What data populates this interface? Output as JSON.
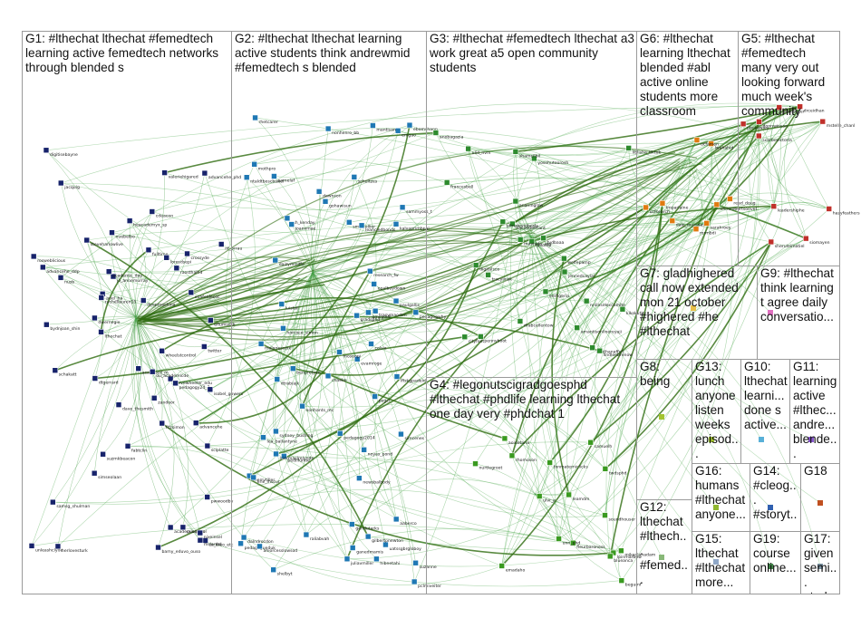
{
  "groups": [
    {
      "id": "G1",
      "label": "G1: #lthechat lthechat #femedtech learning active femedtech networks through blended s"
    },
    {
      "id": "G2",
      "label": "G2: #lthechat lthechat learning active students think andrewmid #femedtech s blended"
    },
    {
      "id": "G3",
      "label": "G3: #lthechat #femedtech lthechat a3 work great a5 open community students"
    },
    {
      "id": "G4",
      "label": "G4: #legonutscigradgoesphd #lthechat #phdlife learning lthechat one day very #phdchat 1"
    },
    {
      "id": "G5",
      "label": "G5: #lthechat #femedtech many very out looking forward much week's community"
    },
    {
      "id": "G6",
      "label": "G6: #lthechat learning lthechat blended #abl active online students more classroom"
    },
    {
      "id": "G7",
      "label": "G7: gladhighered call now extended mon 21 october #highered #he #lthechat"
    },
    {
      "id": "G8",
      "label": "G8: being"
    },
    {
      "id": "G9",
      "label": "G9: #lthechat think learning t agree daily conversatio..."
    },
    {
      "id": "G10",
      "label": "G10: lthechat learni... done s active..."
    },
    {
      "id": "G11",
      "label": "G11: learning active #lthec... andre... blende..."
    },
    {
      "id": "G12",
      "label": "G12: lthechat #lthech... #femed..."
    },
    {
      "id": "G13",
      "label": "G13: lunch anyone listen weeks episod..."
    },
    {
      "id": "G14",
      "label": "G14: #cleog... #storyt... #highe..."
    },
    {
      "id": "G15",
      "label": "G15: lthechat #lthechat more..."
    },
    {
      "id": "G16",
      "label": "G16: humans #lthechat anyone..."
    },
    {
      "id": "G17",
      "label": "G17: given semi... stud..."
    },
    {
      "id": "G18",
      "label": "G18"
    },
    {
      "id": "G19",
      "label": "G19: course online..."
    }
  ],
  "node_labels": {
    "G1": [
      "unleashclyde",
      "steveharlowlive",
      "stevewheeler_edu",
      "simseolaan",
      "pedagogy24_7",
      "fitzsimon",
      "crossyde",
      "suzmkbeacon",
      "valeriehigared",
      "wheelstcontrol",
      "pwwoodby",
      "schakatt",
      "sciplatte",
      "zandoor",
      "ca_bleo_etc",
      "ariel_ha",
      "eoafeldecoc",
      "nusb",
      "jo_annemurray",
      "isobel_gowers",
      "academicqu_lol",
      "advancehe_ddp",
      "acadebcd_m",
      "nuebelbo",
      "advancehe_phd",
      "rachellauren15",
      "bamy_eduvo_ouso",
      "heacademyx_sp",
      "academic_day",
      "lthechat",
      "dtgerrard",
      "fulltime",
      "twitter",
      "advancehe",
      "ou_academicde",
      "fabtclin",
      "eflumsdtb",
      "loresdsepi",
      "deepmachina",
      "dwernegio",
      "guardian",
      "samsg_shulman",
      "bydnjoan_shin",
      "jacquig",
      "nf_brrau",
      "cdeacon",
      "dave_thesmith",
      "herlovesturk",
      "nixeinsel",
      "mslenhd",
      "raosthalhd",
      "rosweblicious",
      "digitisebayne"
    ],
    "G2": [
      "smlacollier",
      "colsia",
      "leanciedbonds",
      "kalvaprimbpal",
      "raliabvah",
      "malanescore",
      "pedagogue4uk",
      "ganedmamis",
      "dalndrocdon",
      "shelbyt",
      "pedagogy2014",
      "ssh_kenday",
      "dtrabiajk",
      "merrytiller",
      "noyes_pond",
      "nonhenro_bb",
      "ahiorcesslowsod",
      "lea_ballantyne",
      "emgao",
      "aaberco",
      "suzanne",
      "tracymaoden",
      "pedllfunde",
      "paulgallis",
      "luisfall",
      "lfiskgpadeid",
      "nonhants_mc",
      "research_fw",
      "gmcgoldr",
      "daizyminiffe",
      "pclmiveiter",
      "gendutarks",
      "sammyoss_t",
      "schultzes",
      "chaeke",
      "hibnetahi",
      "gohawisun",
      "dawnson",
      "evamroge",
      "mosonpi",
      "epalbuydown",
      "mantisan",
      "benpretyen",
      "nickmaclrelynde",
      "joanvmae",
      "gradsphd",
      "eric_mscur",
      "uatssgbrgloboy",
      "simcenes",
      "ebomshapp",
      "pegcl",
      "gilbertpnewton",
      "ntaldtboscbanel",
      "mothpro",
      "rhetcarer",
      "juliavmiller",
      "pamelaf",
      "sydney_bushing",
      "horcoco_simon",
      "pedagogwhy",
      "newsbalbody"
    ],
    "G3": [
      "nacondetfrant",
      "francesbell",
      "anethanaffall",
      "cityfoot",
      "yosehutoorosh",
      "digitalsco",
      "ulid_nvm",
      "tracylinsk",
      "tvdbaaa",
      "liblisha_tiktok",
      "ananinglaw",
      "anobagazia",
      "shamcilbil",
      "pennyboot",
      "nnlinseleccomite",
      "drabcellentow",
      "kikokutic",
      "wolfepamp",
      "pfmaleyroberts",
      "fpercep",
      "emfigeria",
      "jennedcaylal",
      "amantisonlinereyaji",
      "lindleebrenow",
      "mavindn_aes"
    ],
    "G4": [
      "begumf",
      "aoidetaria",
      "emadaho",
      "fleurbaroness",
      "mikeolanadam",
      "nurtlegroot",
      "samuelh",
      "lpinmarbow",
      "unn_phd",
      "ulvr_p",
      "soundhouser",
      "twdsphd",
      "leamdm",
      "rhomoson",
      "tonmaterniclicks",
      "blueanca"
    ],
    "G5": [
      "leadershiphe",
      "mstelle_chanl",
      "sheruleimatiel",
      "pbckawley",
      "gdadbuter",
      "siomayen",
      "scarbovictoria",
      "hazyfeathers",
      "donnwinson",
      "drceidhan"
    ],
    "G6": [
      "chrisrobertsonvet",
      "lwahahid",
      "dale_mursday",
      "read_doug",
      "mrmbdi",
      "sarahroey",
      "ucfamen",
      "ucfsearch",
      "lmparlaine"
    ]
  },
  "title_hint": ""
}
